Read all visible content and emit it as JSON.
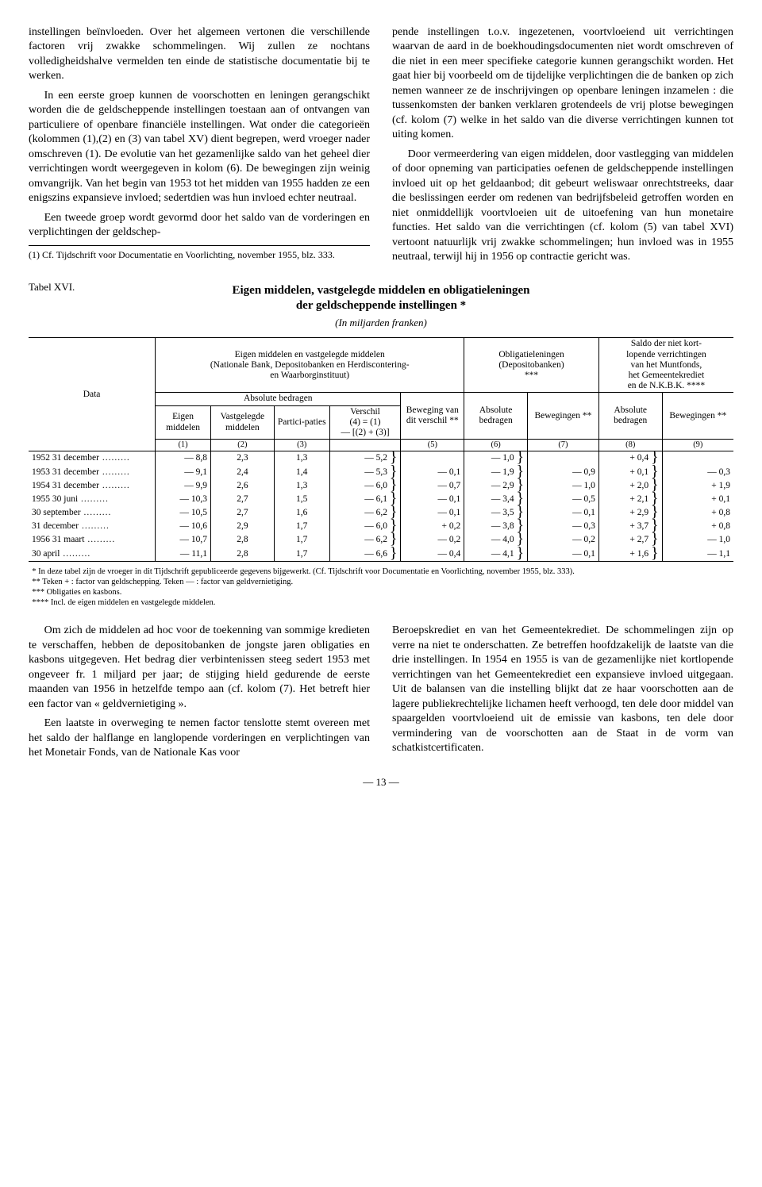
{
  "upper": {
    "left": {
      "p1": "instellingen beïnvloeden. Over het algemeen vertonen die verschillende factoren vrij zwakke schommelingen. Wij zullen ze nochtans volledigheidshalve vermelden ten einde de statistische documentatie bij te werken.",
      "p2": "In een eerste groep kunnen de voorschotten en leningen gerangschikt worden die de geldscheppende instellingen toestaan aan of ontvangen van particuliere of openbare financiële instellingen. Wat onder die categorieën (kolommen (1),(2) en (3) van tabel XV) dient begrepen, werd vroeger nader omschreven (1). De evolutie van het gezamenlijke saldo van het geheel dier verrichtingen wordt weergegeven in kolom (6). De bewegingen zijn weinig omvangrijk. Van het begin van 1953 tot het midden van 1955 hadden ze een enigszins expansieve invloed; sedertdien was hun invloed echter neutraal.",
      "p3": "Een tweede groep wordt gevormd door het saldo van de vorderingen en verplichtingen der geldschep-",
      "fn": "(1) Cf. Tijdschrift voor Documentatie en Voorlichting, november 1955, blz. 333."
    },
    "right": {
      "p1": "pende instellingen t.o.v. ingezetenen, voortvloeiend uit verrichtingen waarvan de aard in de boekhoudingsdocumenten niet wordt omschreven of die niet in een meer specifieke categorie kunnen gerangschikt worden. Het gaat hier bij voorbeeld om de tijdelijke verplichtingen die de banken op zich nemen wanneer ze de inschrijvingen op openbare leningen inzamelen : die tussenkomsten der banken verklaren grotendeels de vrij plotse bewegingen (cf. kolom (7) welke in het saldo van die diverse verrichtingen kunnen tot uiting komen.",
      "p2": "Door vermeerdering van eigen middelen, door vastlegging van middelen of door opneming van participaties oefenen de geldscheppende instellingen invloed uit op het geldaanbod; dit gebeurt weliswaar onrechtstreeks, daar die beslissingen eerder om redenen van bedrijfsbeleid getroffen worden en niet onmiddellijk voortvloeien uit de uitoefening van hun monetaire functies. Het saldo van die verrichtingen (cf. kolom (5) van tabel XVI) vertoont natuurlijk vrij zwakke schommelingen; hun invloed was in 1955 neutraal, terwijl hij in 1956 op contractie gericht was."
    }
  },
  "table": {
    "label": "Tabel XVI.",
    "title_l1": "Eigen middelen, vastgelegde middelen en obligatieleningen",
    "title_l2": "der geldscheppende instellingen *",
    "subtitle": "(In miljarden franken)",
    "h_data": "Data",
    "h_group1_l1": "Eigen middelen en vastgelegde middelen",
    "h_group1_l2": "(Nationale Bank, Depositobanken en Herdiscontering-",
    "h_group1_l3": "en Waarborginstituut)",
    "h_abs": "Absolute bedragen",
    "h_bew": "Beweging van dit verschil **",
    "h_c1": "Eigen middelen",
    "h_c2": "Vastgelegde middelen",
    "h_c3": "Partici-paties",
    "h_c4_l1": "Verschil",
    "h_c4_l2": "(4) = (1)",
    "h_c4_l3": "— [(2) + (3)]",
    "h_group2_l1": "Obligatieleningen",
    "h_group2_l2": "(Depositobanken)",
    "h_group2_l3": "***",
    "h_c6": "Absolute bedragen",
    "h_c7": "Bewegingen **",
    "h_group3_l1": "Saldo der niet kort-",
    "h_group3_l2": "lopende verrichtingen",
    "h_group3_l3": "van het Muntfonds,",
    "h_group3_l4": "het Gemeentekrediet",
    "h_group3_l5": "en de N.K.B.K. ****",
    "h_c8": "Absolute bedragen",
    "h_c9": "Bewegingen **",
    "rows": [
      {
        "date": "1952 31 december",
        "c1": "— 8,8",
        "c2": "2,3",
        "c3": "1,3",
        "c4": "— 5,2",
        "c6": "— 1,0",
        "c8": "+ 0,4"
      },
      {
        "date": "1953 31 december",
        "c1": "— 9,1",
        "c2": "2,4",
        "c3": "1,4",
        "c4": "— 5,3",
        "c6": "— 1,9",
        "c8": "+ 0,1"
      },
      {
        "date": "1954 31 december",
        "c1": "— 9,9",
        "c2": "2,6",
        "c3": "1,3",
        "c4": "— 6,0",
        "c6": "— 2,9",
        "c8": "+ 2,0"
      },
      {
        "date": "1955 30 juni",
        "c1": "— 10,3",
        "c2": "2,7",
        "c3": "1,5",
        "c4": "— 6,1",
        "c6": "— 3,4",
        "c8": "+ 2,1"
      },
      {
        "date": "        30 september",
        "c1": "— 10,5",
        "c2": "2,7",
        "c3": "1,6",
        "c4": "— 6,2",
        "c6": "— 3,5",
        "c8": "+ 2,9"
      },
      {
        "date": "        31 december",
        "c1": "— 10,6",
        "c2": "2,9",
        "c3": "1,7",
        "c4": "— 6,0",
        "c6": "— 3,8",
        "c8": "+ 3,7"
      },
      {
        "date": "1956 31 maart",
        "c1": "— 10,7",
        "c2": "2,8",
        "c3": "1,7",
        "c4": "— 6,2",
        "c6": "— 4,0",
        "c8": "+ 2,7"
      },
      {
        "date": "        30 april",
        "c1": "— 11,1",
        "c2": "2,8",
        "c3": "1,7",
        "c4": "— 6,6",
        "c6": "— 4,1",
        "c8": "+ 1,6"
      }
    ],
    "mov5": [
      "— 0,1",
      "— 0,7",
      "— 0,1",
      "— 0,1",
      "+ 0,2",
      "— 0,2",
      "— 0,4"
    ],
    "mov7": [
      "— 0,9",
      "— 1,0",
      "— 0,5",
      "— 0,1",
      "— 0,3",
      "— 0,2",
      "— 0,1"
    ],
    "mov9": [
      "— 0,3",
      "+ 1,9",
      "+ 0,1",
      "+ 0,8",
      "+ 0,8",
      "— 1,0",
      "— 1,1"
    ],
    "notes": {
      "n1": "* In deze tabel zijn de vroeger in dit Tijdschrift gepubliceerde gegevens bijgewerkt. (Cf. Tijdschrift voor Documentatie en Voorlichting, november 1955, blz. 333).",
      "n2": "** Teken + : factor van geldschepping. Teken — : factor van geldvernietiging.",
      "n3": "*** Obligaties en kasbons.",
      "n4": "**** Incl. de eigen middelen en vastgelegde middelen."
    }
  },
  "lower": {
    "left": {
      "p1": "Om zich de middelen ad hoc voor de toekenning van sommige kredieten te verschaffen, hebben de depositobanken de jongste jaren obligaties en kasbons uitgegeven. Het bedrag dier verbintenissen steeg sedert 1953 met ongeveer fr. 1 miljard per jaar; de stijging hield gedurende de eerste maanden van 1956 in hetzelfde tempo aan (cf. kolom (7). Het betreft hier een factor van « geldvernietiging ».",
      "p2": "Een laatste in overweging te nemen factor tenslotte stemt overeen met het saldo der halflange en langlopende vorderingen en verplichtingen van het Monetair Fonds, van de Nationale Kas voor"
    },
    "right": {
      "p1": "Beroepskrediet en van het Gemeentekrediet. De schommelingen zijn op verre na niet te onderschatten. Ze betreffen hoofdzakelijk de laatste van die drie instellingen. In 1954 en 1955 is van de gezamenlijke niet kortlopende verrichtingen van het Gemeentekrediet een expansieve invloed uitgegaan. Uit de balansen van die instelling blijkt dat ze haar voorschotten aan de lagere publiekrechtelijke lichamen heeft verhoogd, ten dele door middel van spaargelden voortvloeiend uit de emissie van kasbons, ten dele door vermindering van de voorschotten aan de Staat in de vorm van schatkistcertificaten."
    }
  },
  "pagenum": "— 13 —"
}
